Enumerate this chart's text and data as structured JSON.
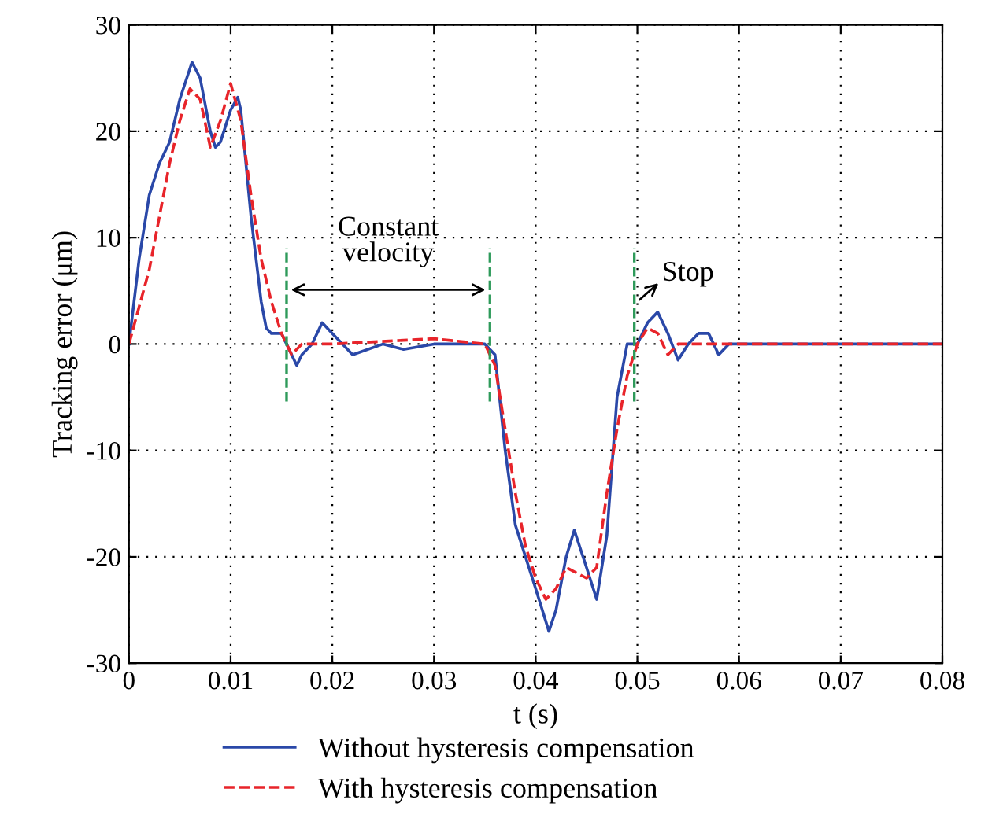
{
  "chart_data": {
    "type": "line",
    "xlabel": "t (s)",
    "ylabel": "Tracking error (μm)",
    "xlim": [
      0,
      0.08
    ],
    "ylim": [
      -30,
      30
    ],
    "xticks": [
      0,
      0.01,
      0.02,
      0.03,
      0.04,
      0.05,
      0.06,
      0.07,
      0.08
    ],
    "yticks": [
      -30,
      -20,
      -10,
      0,
      10,
      20,
      30
    ],
    "grid": true,
    "legend": "bottom left",
    "series": [
      {
        "name": "Without hysteresis compensation",
        "color": "#2a48a8",
        "line_style": "solid",
        "x": [
          0,
          0.001,
          0.002,
          0.003,
          0.004,
          0.005,
          0.0062,
          0.007,
          0.008,
          0.0085,
          0.009,
          0.01,
          0.0107,
          0.011,
          0.012,
          0.013,
          0.0135,
          0.014,
          0.015,
          0.016,
          0.0165,
          0.017,
          0.018,
          0.019,
          0.02,
          0.021,
          0.022,
          0.025,
          0.027,
          0.03,
          0.035,
          0.036,
          0.037,
          0.038,
          0.039,
          0.04,
          0.0413,
          0.042,
          0.043,
          0.0438,
          0.045,
          0.046,
          0.047,
          0.048,
          0.049,
          0.05,
          0.051,
          0.052,
          0.053,
          0.054,
          0.055,
          0.056,
          0.057,
          0.058,
          0.059,
          0.08
        ],
        "values": [
          0,
          8,
          14,
          17,
          19,
          23,
          26.5,
          25,
          20,
          18.5,
          19,
          22,
          23.2,
          22,
          12,
          4,
          1.5,
          1,
          1,
          -1,
          -2,
          -1,
          0,
          2,
          1,
          0,
          -1,
          0,
          -0.5,
          0,
          0,
          -1,
          -10,
          -17,
          -20,
          -23,
          -27,
          -25,
          -20,
          -17.5,
          -21,
          -24,
          -18,
          -5,
          0,
          0,
          2,
          3,
          1,
          -1.5,
          0,
          1,
          1,
          -1,
          0,
          0
        ]
      },
      {
        "name": "With hysteresis compensation",
        "color": "#e8242a",
        "line_style": "dashed",
        "x": [
          0,
          0.002,
          0.003,
          0.004,
          0.005,
          0.006,
          0.007,
          0.008,
          0.009,
          0.01,
          0.011,
          0.012,
          0.013,
          0.014,
          0.015,
          0.016,
          0.017,
          0.02,
          0.03,
          0.035,
          0.036,
          0.037,
          0.038,
          0.039,
          0.04,
          0.041,
          0.042,
          0.043,
          0.044,
          0.045,
          0.046,
          0.047,
          0.048,
          0.049,
          0.05,
          0.051,
          0.052,
          0.053,
          0.054,
          0.08
        ],
        "values": [
          0,
          7,
          12,
          17,
          21,
          24,
          23,
          18.5,
          21,
          24.5,
          21,
          14,
          8,
          4,
          1,
          -1,
          0,
          0,
          0.5,
          0,
          -2,
          -8,
          -14,
          -19,
          -22,
          -24,
          -23,
          -21,
          -21.5,
          -22,
          -21,
          -14,
          -8,
          -3,
          0,
          1.5,
          1,
          -1,
          0,
          0
        ]
      }
    ],
    "ref_lines": [
      {
        "axis": "x",
        "value": 0.0155,
        "label": null,
        "color": "#2e9a5a",
        "line_style": "dashed"
      },
      {
        "axis": "x",
        "value": 0.0355,
        "label": null,
        "color": "#2e9a5a",
        "line_style": "dashed"
      },
      {
        "axis": "x",
        "value": 0.0497,
        "label": null,
        "color": "#2e9a5a",
        "line_style": "dashed"
      }
    ],
    "annotations": [
      "Constant\nvelocity",
      "Stop"
    ]
  }
}
